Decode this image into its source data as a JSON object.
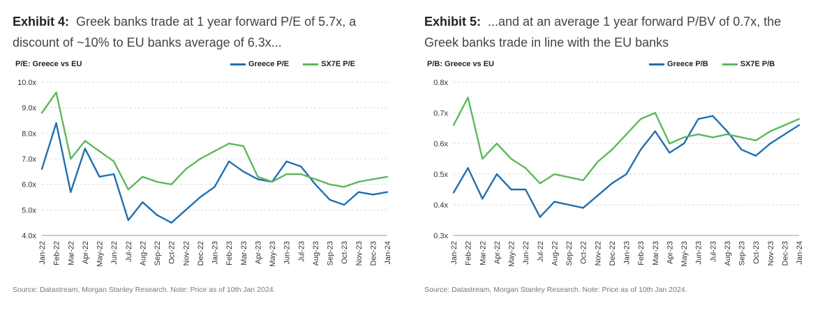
{
  "colors": {
    "greece": "#1f6fb0",
    "sx7e": "#5cb85c",
    "grid": "#d9d9d9"
  },
  "chart_data": [
    {
      "type": "line",
      "exhibit": "Exhibit 4:",
      "title": "Greek banks trade at 1 year forward P/E of 5.7x, a discount of ~10% to EU banks average of 6.3x...",
      "ylabel": "P/E: Greece vs EU",
      "ylim": [
        4.0,
        10.0
      ],
      "yticks": [
        "10.0x",
        "9.0x",
        "8.0x",
        "7.0x",
        "6.0x",
        "5.0x",
        "4.0x"
      ],
      "ytick_values": [
        10,
        9,
        8,
        7,
        6,
        5,
        4
      ],
      "x": [
        "Jan-22",
        "Feb-22",
        "Mar-22",
        "Apr-22",
        "May-22",
        "Jun-22",
        "Jul-22",
        "Aug-22",
        "Sep-22",
        "Oct-22",
        "Nov-22",
        "Dec-22",
        "Jan-23",
        "Feb-23",
        "Mar-23",
        "Apr-23",
        "May-23",
        "Jun-23",
        "Jul-23",
        "Aug-23",
        "Sep-23",
        "Oct-23",
        "Nov-23",
        "Dec-23",
        "Jan-24"
      ],
      "xticks": [
        "Jan-22",
        "Feb-22",
        "Mar-22",
        "Apr-22",
        "May-22",
        "Jun-22",
        "Jul-22",
        "Aug-22",
        "Sep-22",
        "Oct-22",
        "Nov-22",
        "Dec-22",
        "Jan-23",
        "Feb-23",
        "Mar-23",
        "Apr-23",
        "May-23",
        "Jun-23",
        "Jul-23",
        "Aug-23",
        "Sep-23",
        "Oct-23",
        "Nov-23",
        "Dec-23",
        "Jan-24"
      ],
      "series": [
        {
          "name": "Greece P/E",
          "color": "#1f6fb0",
          "values": [
            6.6,
            8.4,
            5.7,
            7.4,
            6.3,
            6.4,
            4.6,
            5.3,
            4.8,
            4.5,
            5.0,
            5.5,
            5.9,
            6.9,
            6.5,
            6.2,
            6.1,
            6.9,
            6.7,
            6.0,
            5.4,
            5.2,
            5.7,
            5.6,
            5.7
          ]
        },
        {
          "name": "SX7E P/E",
          "color": "#5cb85c",
          "values": [
            8.8,
            9.6,
            7.0,
            7.7,
            7.3,
            6.9,
            5.8,
            6.3,
            6.1,
            6.0,
            6.6,
            7.0,
            7.3,
            7.6,
            7.5,
            6.3,
            6.1,
            6.4,
            6.4,
            6.2,
            6.0,
            5.9,
            6.1,
            6.2,
            6.3
          ]
        }
      ]
    },
    {
      "type": "line",
      "exhibit": "Exhibit 5:",
      "title": "...and at an average 1 year forward P/BV of 0.7x, the Greek banks trade in line with the EU banks",
      "ylabel": "P/B: Greece vs EU",
      "ylim": [
        0.3,
        0.8
      ],
      "yticks": [
        "0.8x",
        "0.7x",
        "0.6x",
        "0.5x",
        "0.4x",
        "0.3x"
      ],
      "ytick_values": [
        0.8,
        0.7,
        0.6,
        0.5,
        0.4,
        0.3
      ],
      "x": [
        "Jan-22",
        "Feb-22",
        "Mar-22",
        "Apr-22",
        "May-22",
        "Jun-22",
        "Jul-22",
        "Aug-22",
        "Sep-22",
        "Oct-22",
        "Nov-22",
        "Dec-22",
        "Jan-23",
        "Feb-23",
        "Mar-23",
        "Apr-23",
        "May-23",
        "Jun-23",
        "Jul-23",
        "Aug-23",
        "Sep-23",
        "Oct-23",
        "Nov-23",
        "Dec-23",
        "Jan-24"
      ],
      "xticks": [
        "Jan-22",
        "Feb-22",
        "Mar-22",
        "Apr-22",
        "May-22",
        "Jun-22",
        "Jul-22",
        "Aug-22",
        "Sep-22",
        "Oct-22",
        "Nov-22",
        "Dec-22",
        "Jan-23",
        "Feb-23",
        "Mar-23",
        "Apr-23",
        "May-23",
        "Jun-23",
        "Jul-23",
        "Aug-23",
        "Sep-23",
        "Oct-23",
        "Nov-23",
        "Dec-23",
        "Jan-24"
      ],
      "series": [
        {
          "name": "Greece P/B",
          "color": "#1f6fb0",
          "values": [
            0.44,
            0.52,
            0.42,
            0.5,
            0.45,
            0.45,
            0.36,
            0.41,
            0.4,
            0.39,
            0.43,
            0.47,
            0.5,
            0.58,
            0.64,
            0.57,
            0.6,
            0.68,
            0.69,
            0.64,
            0.58,
            0.56,
            0.6,
            0.63,
            0.66
          ]
        },
        {
          "name": "SX7E P/B",
          "color": "#5cb85c",
          "values": [
            0.66,
            0.75,
            0.55,
            0.6,
            0.55,
            0.52,
            0.47,
            0.5,
            0.49,
            0.48,
            0.54,
            0.58,
            0.63,
            0.68,
            0.7,
            0.6,
            0.62,
            0.63,
            0.62,
            0.63,
            0.62,
            0.61,
            0.64,
            0.66,
            0.68
          ]
        }
      ]
    }
  ],
  "sources": [
    "Source: Datastream, Morgan Stanley Research. Note: Price as of 10th Jan 2024.",
    "Source: Datastream, Morgan Stanley Research. Note: Price as of 10th Jan 2024."
  ]
}
